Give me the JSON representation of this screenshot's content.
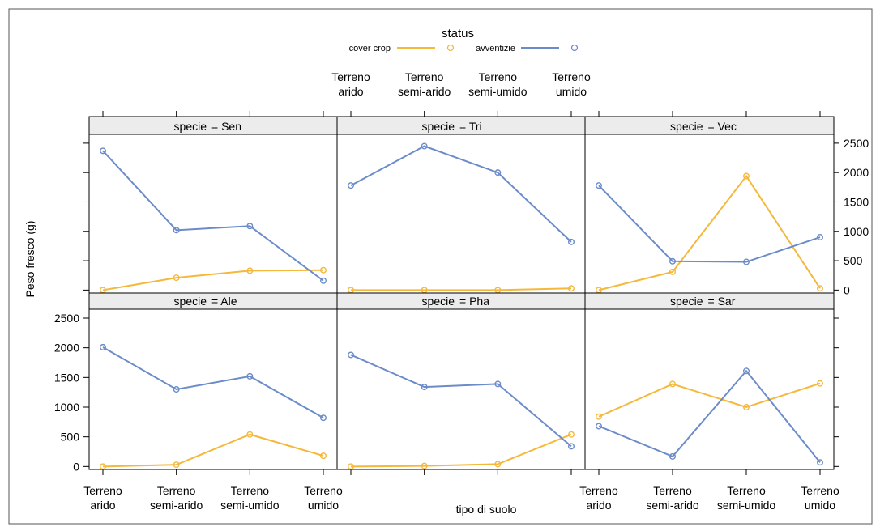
{
  "colors": {
    "cover_crop": "#f5b83a",
    "avventizie": "#6b8cc9",
    "strip": "#ececec"
  },
  "legend": {
    "title": "status",
    "items": [
      {
        "label": "cover crop",
        "color": "#f5b83a"
      },
      {
        "label": "avventizie",
        "color": "#6b8cc9"
      }
    ]
  },
  "chart_data": {
    "type": "line",
    "xlabel": "tipo di suolo",
    "ylabel": "Peso fresco (g)",
    "strip_prefix": "specie",
    "categories": [
      [
        "Terreno",
        "arido"
      ],
      [
        "Terreno",
        "semi-arido"
      ],
      [
        "Terreno",
        "semi-umido"
      ],
      [
        "Terreno",
        "umido"
      ]
    ],
    "yticks": [
      0,
      500,
      1000,
      1500,
      2000,
      2500
    ],
    "ylim": [
      -50,
      2650
    ],
    "panels": [
      {
        "strip": "= Sen",
        "series": [
          {
            "name": "cover crop",
            "values": [
              0,
              210,
              330,
              340
            ]
          },
          {
            "name": "avventizie",
            "values": [
              2370,
              1020,
              1090,
              160
            ]
          }
        ]
      },
      {
        "strip": "= Tri",
        "series": [
          {
            "name": "cover crop",
            "values": [
              0,
              0,
              0,
              30
            ]
          },
          {
            "name": "avventizie",
            "values": [
              1780,
              2450,
              2000,
              820
            ]
          }
        ]
      },
      {
        "strip": "= Vec",
        "series": [
          {
            "name": "cover crop",
            "values": [
              0,
              310,
              1940,
              30
            ]
          },
          {
            "name": "avventizie",
            "values": [
              1780,
              490,
              480,
              900
            ]
          }
        ]
      },
      {
        "strip": "= Ale",
        "series": [
          {
            "name": "cover crop",
            "values": [
              0,
              30,
              540,
              180
            ]
          },
          {
            "name": "avventizie",
            "values": [
              2010,
              1300,
              1520,
              820
            ]
          }
        ]
      },
      {
        "strip": "= Pha",
        "series": [
          {
            "name": "cover crop",
            "values": [
              0,
              10,
              40,
              540
            ]
          },
          {
            "name": "avventizie",
            "values": [
              1880,
              1340,
              1390,
              340
            ]
          }
        ]
      },
      {
        "strip": "= Sar",
        "series": [
          {
            "name": "cover crop",
            "values": [
              840,
              1390,
              1000,
              1400
            ]
          },
          {
            "name": "avventizie",
            "values": [
              680,
              170,
              1610,
              70
            ]
          }
        ]
      }
    ]
  }
}
